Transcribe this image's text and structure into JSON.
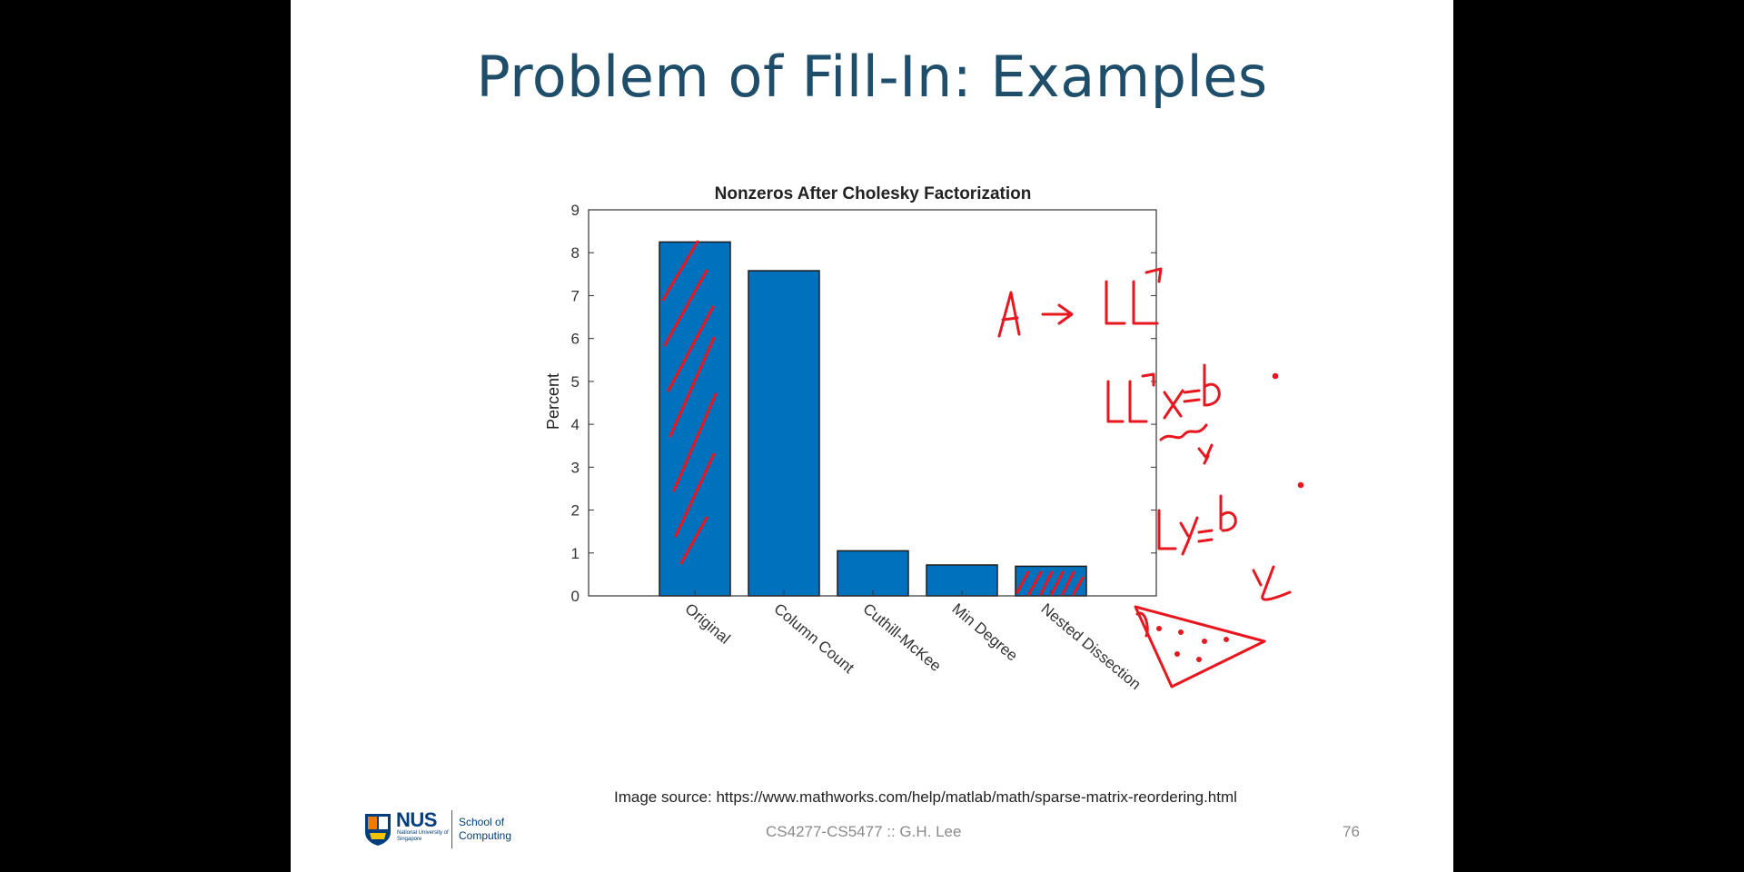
{
  "slide": {
    "title": "Problem of Fill-In: Examples",
    "source": "Image source: https://www.mathworks.com/help/matlab/math/sparse-matrix-reordering.html",
    "footer": "CS4277-CS5477 :: G.H. Lee",
    "page": "76"
  },
  "logo": {
    "name": "NUS",
    "university": "National University of Singapore",
    "school": "School of Computing"
  },
  "colors": {
    "bar": "#0072BD",
    "annotation": "#e8161e",
    "title": "#1f4e6b"
  },
  "chart_data": {
    "type": "bar",
    "title": "Nonzeros After Cholesky Factorization",
    "xlabel": "",
    "ylabel": "Percent",
    "categories": [
      "Original",
      "Column Count",
      "Cuthill-McKee",
      "Min Degree",
      "Nested Dissection"
    ],
    "values": [
      8.25,
      7.58,
      1.05,
      0.72,
      0.69
    ],
    "ylim": [
      0,
      9
    ],
    "yticks": [
      0,
      1,
      2,
      3,
      4,
      5,
      6,
      7,
      8,
      9
    ],
    "grid": false,
    "legend": "none"
  },
  "annotations": [
    "A → LLᵀ",
    "LLᵀx = b.",
    "y",
    "Ly = b.",
    "y"
  ]
}
